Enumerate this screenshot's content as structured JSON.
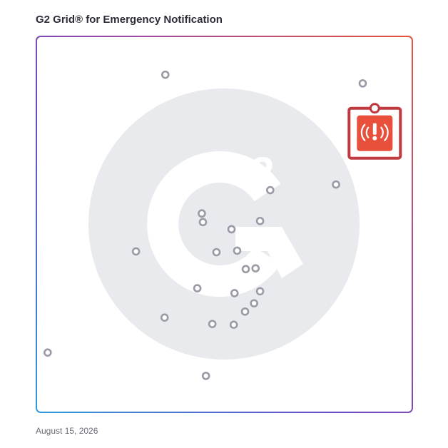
{
  "header": {
    "title": "G2 Grid® for Emergency Notification"
  },
  "footer": {
    "date": "August 15, 2026"
  },
  "watermark": {
    "logo_text": "G2"
  },
  "colors": {
    "background": "#ffffff",
    "title": "#2d2d3a",
    "date": "#6b6b78",
    "point_stroke": "#9a9aa6",
    "watermark": "#e8eaee",
    "frame_gradient": [
      "#2f9ad8",
      "#6a4bc4",
      "#a24aa0",
      "#e8533a"
    ],
    "highlight_red": "#e8503c",
    "highlight_frame": "#c0393f"
  },
  "highlight": {
    "icon": "emergency-broadcast-icon",
    "x": 90,
    "y": 75
  },
  "chart_data": {
    "type": "scatter",
    "title": "G2 Grid® for Emergency Notification",
    "xlabel": "",
    "ylabel": "",
    "xlim": [
      0,
      100
    ],
    "ylim": [
      0,
      100
    ],
    "grid": "quadrants",
    "points": [
      {
        "x": 34.3,
        "y": 89.8
      },
      {
        "x": 86.8,
        "y": 87.5
      },
      {
        "x": 79.7,
        "y": 60.6
      },
      {
        "x": 62.2,
        "y": 59.1
      },
      {
        "x": 44.0,
        "y": 52.9
      },
      {
        "x": 44.3,
        "y": 50.6
      },
      {
        "x": 59.5,
        "y": 50.9
      },
      {
        "x": 51.9,
        "y": 48.7
      },
      {
        "x": 26.5,
        "y": 42.8
      },
      {
        "x": 47.9,
        "y": 42.6
      },
      {
        "x": 53.4,
        "y": 43.0
      },
      {
        "x": 55.7,
        "y": 38.1
      },
      {
        "x": 58.3,
        "y": 38.3
      },
      {
        "x": 42.8,
        "y": 33.0
      },
      {
        "x": 52.7,
        "y": 31.7
      },
      {
        "x": 59.5,
        "y": 32.2
      },
      {
        "x": 57.9,
        "y": 29.0
      },
      {
        "x": 55.5,
        "y": 26.8
      },
      {
        "x": 34.1,
        "y": 25.2
      },
      {
        "x": 46.8,
        "y": 23.5
      },
      {
        "x": 52.5,
        "y": 23.3
      },
      {
        "x": 3.0,
        "y": 15.9
      },
      {
        "x": 45.1,
        "y": 9.7
      }
    ]
  }
}
